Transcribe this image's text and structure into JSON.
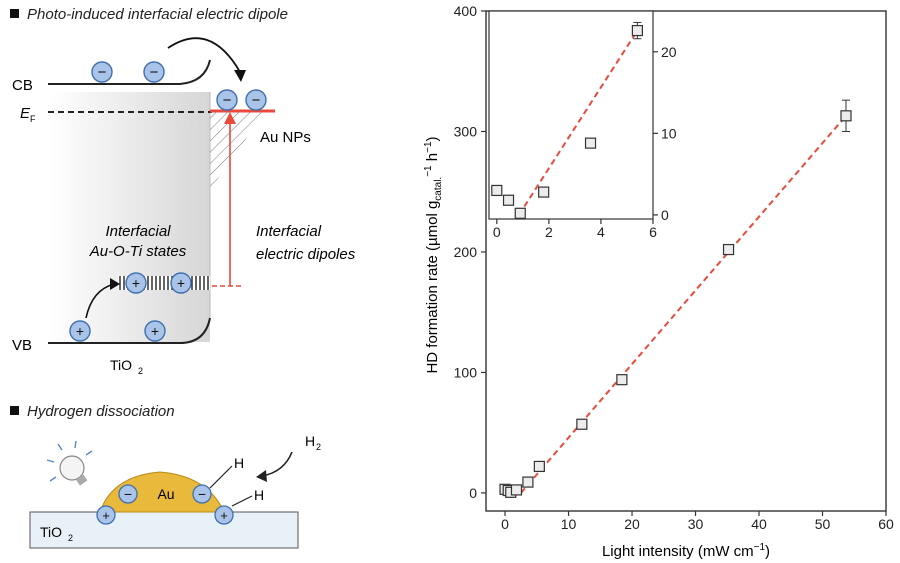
{
  "left_panel": {
    "heading_dipole": "Photo-induced interfacial electric dipole",
    "heading_hydrogen": "Hydrogen dissociation",
    "cb": "CB",
    "vb": "VB",
    "ef_main": "E",
    "ef_sub": "F",
    "au_nps": "Au NPs",
    "interfacial_states_1": "Interfacial",
    "interfacial_states_2": "Au-O-Ti states",
    "dipoles_1": "Interfacial",
    "dipoles_2": "electric dipoles",
    "tio2_main": "TiO",
    "tio2_sub": "2",
    "minus": "−",
    "plus": "+",
    "au": "Au",
    "h": "H",
    "h2_main": "H",
    "h2_sub": "2",
    "colors": {
      "particle_fill": "#a9c4e8",
      "particle_stroke": "#3f6fb0",
      "red_line": "#e84a3c",
      "gold": "#e8b93a",
      "substrate": "#e9f1f8"
    }
  },
  "chart_data": [
    {
      "type": "scatter",
      "xlabel": "Light intensity (mW cm",
      "xlabel_sup": "−1",
      "xlabel_tail": ")",
      "ylabel_a": "HD formation rate (µmol g",
      "ylabel_sub": "catal.",
      "ylabel_sup1": "−1",
      "ylabel_b": " h",
      "ylabel_sup2": "−1",
      "ylabel_c": ")",
      "xlim": [
        -3,
        60
      ],
      "ylim": [
        -15,
        400
      ],
      "xticks": [
        "0",
        "10",
        "20",
        "30",
        "40",
        "50",
        "60"
      ],
      "yticks": [
        "0",
        "100",
        "200",
        "300",
        "400"
      ],
      "points": [
        {
          "x": 0,
          "y": 3,
          "err": 2
        },
        {
          "x": 0.5,
          "y": 2,
          "err": 2
        },
        {
          "x": 0.9,
          "y": 0.5,
          "err": 2
        },
        {
          "x": 1.8,
          "y": 2.5,
          "err": 2
        },
        {
          "x": 3.6,
          "y": 9,
          "err": 2
        },
        {
          "x": 5.4,
          "y": 22,
          "err": 3
        },
        {
          "x": 12.1,
          "y": 57,
          "err": 3
        },
        {
          "x": 18.4,
          "y": 94,
          "err": 3
        },
        {
          "x": 35.2,
          "y": 202,
          "err": 3
        },
        {
          "x": 53.7,
          "y": 313,
          "err": 13
        }
      ],
      "fit": {
        "x": [
          2.5,
          53.7
        ],
        "y": [
          0,
          313
        ],
        "color": "#e84a3c"
      }
    },
    {
      "type": "scatter",
      "xlim": [
        -0.3,
        6
      ],
      "ylim": [
        -0.5,
        25
      ],
      "xticks": [
        "0",
        "2",
        "4",
        "6"
      ],
      "yticks": [
        "0",
        "10",
        "20"
      ],
      "points": [
        {
          "x": 0,
          "y": 3,
          "err": 0.4
        },
        {
          "x": 0.45,
          "y": 1.8,
          "err": 0.4
        },
        {
          "x": 0.9,
          "y": 0.2,
          "err": 0.4
        },
        {
          "x": 1.8,
          "y": 2.8,
          "err": 0.4
        },
        {
          "x": 3.6,
          "y": 8.8,
          "err": 0.4
        },
        {
          "x": 5.4,
          "y": 22.6,
          "err": 1
        }
      ],
      "fit": {
        "x": [
          0.85,
          5.4
        ],
        "y": [
          0,
          22.6
        ],
        "color": "#e84a3c"
      }
    }
  ]
}
